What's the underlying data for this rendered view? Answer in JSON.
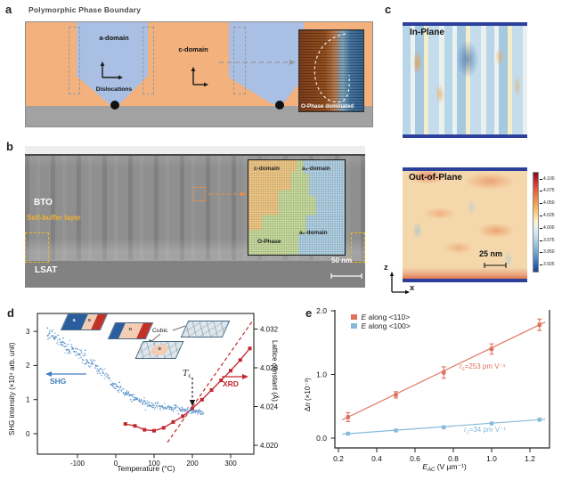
{
  "panels": {
    "a": {
      "label": "a",
      "title": "Polymorphic Phase Boundary",
      "a_domain": "a-domain",
      "c_domain": "c-domain",
      "dislocations": "Dislocations",
      "inset_caption": "O-Phase dominated",
      "colors": {
        "matrix": "#F3B17D",
        "domain": "#A9BFE4",
        "substrate": "#A2A2A2"
      }
    },
    "b": {
      "label": "b",
      "bto": "BTO",
      "self_buffer_layer": "Self-buffer layer",
      "lsat": "LSAT",
      "scale_bar": "50 nm",
      "inset": {
        "c_domain": "c-domain",
        "a2_domain": "a₂-domain",
        "o_phase": "O-Phase",
        "a1_domain": "a₁-domain"
      },
      "colors": {
        "film": "#8F8F8F",
        "substrate": "#828282",
        "inset_orange": "#EFC785",
        "inset_blue": "#AFD0E3",
        "inset_green": "#C6DA9C",
        "annotation_yellow": "#E8B82A",
        "annotation_orange": "#E09050"
      }
    },
    "c": {
      "label": "c",
      "in_plane": "In-Plane",
      "out_of_plane": "Out-of-Plane",
      "scale_bar": "25 nm",
      "axis_z": "z",
      "axis_x": "x",
      "colorbar_ticks": [
        "4.100",
        "4.075",
        "4.050",
        "4.025",
        "4.000",
        "3.975",
        "3.950",
        "3.925"
      ]
    },
    "d": {
      "label": "d"
    },
    "e": {
      "label": "e"
    }
  },
  "chart_data": [
    {
      "panel": "d",
      "type": "scatter",
      "xlabel": "Temperature (°C)",
      "x_ticks": [
        -100,
        0,
        100,
        200,
        300
      ],
      "xlim": [
        -205,
        360
      ],
      "ylabel_left": "SHG intensity (×10⁴ arb. unit)",
      "y_ticks_left": [
        0,
        1,
        2,
        3
      ],
      "ylim_left": [
        -0.6,
        3.52
      ],
      "ylabel_right": "Lattice constant (Å)",
      "y_ticks_right": [
        "4.020",
        "4.024",
        "4.028",
        "4.032"
      ],
      "ylim_right": [
        4.0191,
        4.0336
      ],
      "grid": false,
      "series": [
        {
          "name": "SHG",
          "axis": "left",
          "style": "noisy_scatter",
          "color": "#3F7FBF",
          "points": [
            [
              -180,
              2.97
            ],
            [
              -170,
              2.9
            ],
            [
              -160,
              2.81
            ],
            [
              -150,
              2.73
            ],
            [
              -140,
              2.65
            ],
            [
              -130,
              2.57
            ],
            [
              -120,
              2.5
            ],
            [
              -110,
              2.43
            ],
            [
              -100,
              2.36
            ],
            [
              -90,
              2.28
            ],
            [
              -80,
              2.19
            ],
            [
              -70,
              2.11
            ],
            [
              -60,
              2.03
            ],
            [
              -50,
              1.94
            ],
            [
              -40,
              1.84
            ],
            [
              -30,
              1.73
            ],
            [
              -20,
              1.62
            ],
            [
              -10,
              1.5
            ],
            [
              0,
              1.4
            ],
            [
              10,
              1.31
            ],
            [
              20,
              1.23
            ],
            [
              30,
              1.16
            ],
            [
              40,
              1.09
            ],
            [
              50,
              1.03
            ],
            [
              60,
              0.98
            ],
            [
              70,
              0.94
            ],
            [
              80,
              0.9
            ],
            [
              90,
              0.86
            ],
            [
              100,
              0.83
            ],
            [
              110,
              0.81
            ],
            [
              120,
              0.79
            ],
            [
              130,
              0.77
            ],
            [
              140,
              0.75
            ],
            [
              150,
              0.73
            ],
            [
              160,
              0.72
            ],
            [
              170,
              0.71
            ],
            [
              180,
              0.7
            ],
            [
              190,
              0.68
            ],
            [
              200,
              0.67
            ],
            [
              210,
              0.64
            ],
            [
              220,
              0.62
            ],
            [
              230,
              0.6
            ]
          ]
        },
        {
          "name": "XRD",
          "axis": "right",
          "style": "line_squares",
          "color": "#C1272D",
          "points": [
            [
              25,
              4.0222
            ],
            [
              50,
              4.022
            ],
            [
              75,
              4.0216
            ],
            [
              100,
              4.0215
            ],
            [
              125,
              4.0218
            ],
            [
              150,
              4.0224
            ],
            [
              175,
              4.023
            ],
            [
              200,
              4.0238
            ],
            [
              225,
              4.0247
            ],
            [
              250,
              4.0257
            ],
            [
              275,
              4.0267
            ],
            [
              300,
              4.0277
            ],
            [
              325,
              4.0288
            ],
            [
              350,
              4.03
            ]
          ]
        },
        {
          "name": "XRD linear fit",
          "axis": "right",
          "style": "dashed_line",
          "color": "#C1272D",
          "points": [
            [
              135,
              4.0203
            ],
            [
              360,
              4.033
            ]
          ]
        }
      ],
      "annotations": {
        "tc_main": "T",
        "tc_sub": "c",
        "tc_temperature": 200,
        "shg_label": "SHG",
        "xrd_label": "XRD",
        "cubic_label": "Cubic",
        "cartoon_letters": {
          "a": "a",
          "o": "o"
        }
      }
    },
    {
      "panel": "e",
      "type": "scatter",
      "xlabel_main": "E",
      "xlabel_sub": "AC",
      "xlabel_rest": " (V μm⁻¹)",
      "x_ticks": [
        "0.2",
        "0.4",
        "0.6",
        "0.8",
        "1.0",
        "1.2"
      ],
      "xlim": [
        0.18,
        1.3
      ],
      "ylabel_main": "Δ",
      "ylabel_italic": "n",
      "ylabel_rest": " (×10⁻³)",
      "y_ticks": [
        "0.0",
        "1.0",
        "2.0"
      ],
      "ylim": [
        -0.16,
        2.02
      ],
      "grid": false,
      "series": [
        {
          "legend_e": "E",
          "legend_rest": " along <110>",
          "color": "#E0705C",
          "x": [
            0.25,
            0.5,
            0.75,
            1.0,
            1.25
          ],
          "y": [
            0.33,
            0.68,
            1.03,
            1.4,
            1.78
          ],
          "yerr": [
            0.07,
            0.05,
            0.09,
            0.08,
            0.09
          ],
          "fit_r": "r",
          "fit_sub": "c",
          "fit_rest": "=253 pm V⁻¹"
        },
        {
          "legend_e": "E",
          "legend_rest": " along <100>",
          "color": "#85B9DC",
          "x": [
            0.25,
            0.5,
            0.75,
            1.0,
            1.25
          ],
          "y": [
            0.07,
            0.12,
            0.17,
            0.23,
            0.29
          ],
          "yerr": [
            0,
            0,
            0,
            0,
            0
          ],
          "fit_r": "r",
          "fit_sub": "c",
          "fit_rest": "=34 pm V⁻¹"
        }
      ]
    }
  ]
}
